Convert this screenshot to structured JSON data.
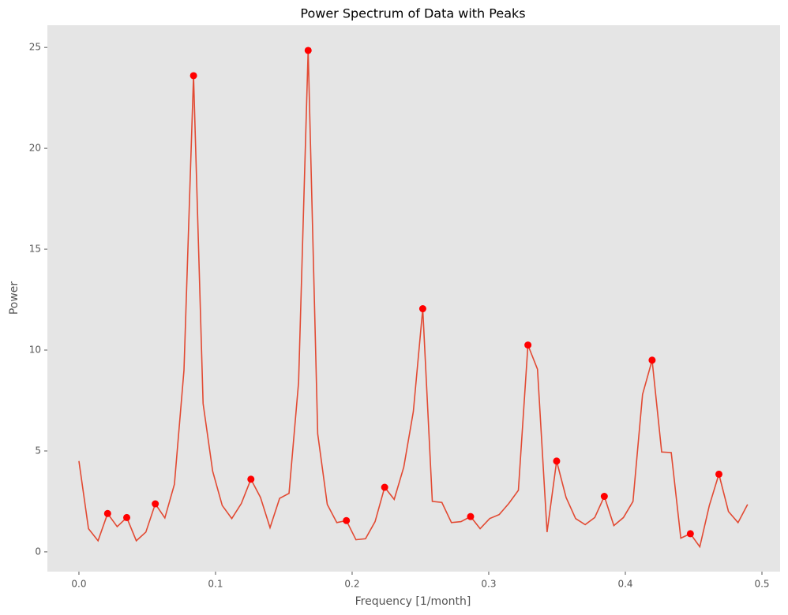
{
  "chart_data": {
    "type": "line",
    "title": "Power Spectrum of Data with Peaks",
    "x_label": "Frequency [1/month]",
    "y_label": "Power",
    "x": [
      0,
      0.007,
      0.014,
      0.021,
      0.028,
      0.035,
      0.042,
      0.049,
      0.0559,
      0.0629,
      0.0699,
      0.0769,
      0.0839,
      0.0909,
      0.0979,
      0.1049,
      0.1119,
      0.1189,
      0.1259,
      0.1329,
      0.1399,
      0.1469,
      0.1538,
      0.1608,
      0.1678,
      0.1748,
      0.1818,
      0.1888,
      0.1958,
      0.2028,
      0.2098,
      0.2168,
      0.2238,
      0.2308,
      0.2378,
      0.2448,
      0.2517,
      0.2587,
      0.2657,
      0.2727,
      0.2797,
      0.2867,
      0.2937,
      0.3007,
      0.3077,
      0.3147,
      0.3217,
      0.3287,
      0.3357,
      0.3427,
      0.3497,
      0.3566,
      0.3636,
      0.3706,
      0.3776,
      0.3846,
      0.3916,
      0.3986,
      0.4056,
      0.4126,
      0.4196,
      0.4266,
      0.4336,
      0.4406,
      0.4476,
      0.4545,
      0.4615,
      0.4685,
      0.4755,
      0.4825,
      0.4895
    ],
    "series": [
      {
        "color": "#e24a33",
        "values": [
          4.5,
          1.15,
          0.55,
          1.9,
          1.25,
          1.7,
          0.55,
          0.98,
          2.38,
          1.68,
          3.35,
          9.0,
          23.6,
          7.35,
          4.0,
          2.3,
          1.65,
          2.4,
          3.6,
          2.7,
          1.2,
          2.65,
          2.9,
          8.4,
          24.85,
          5.85,
          2.35,
          1.45,
          1.55,
          0.6,
          0.65,
          1.5,
          3.2,
          2.6,
          4.2,
          6.95,
          12.05,
          2.5,
          2.45,
          1.45,
          1.5,
          1.75,
          1.15,
          1.65,
          1.85,
          2.4,
          3.05,
          10.25,
          9.05,
          0.98,
          4.5,
          2.7,
          1.65,
          1.35,
          1.7,
          2.75,
          1.3,
          1.7,
          2.5,
          7.8,
          9.5,
          4.95,
          4.92,
          0.68,
          0.9,
          0.25,
          2.3,
          3.85,
          2.0,
          1.45,
          2.35
        ]
      }
    ],
    "peaks": {
      "color": "#ff0000",
      "x": [
        0.021,
        0.035,
        0.0559,
        0.0839,
        0.1259,
        0.1678,
        0.1958,
        0.2238,
        0.2517,
        0.2867,
        0.3287,
        0.3497,
        0.3846,
        0.4196,
        0.4476,
        0.4685
      ],
      "values": [
        1.9,
        1.7,
        2.38,
        23.6,
        3.6,
        24.85,
        1.55,
        3.2,
        12.05,
        1.75,
        10.25,
        4.5,
        2.75,
        9.5,
        0.9,
        3.85
      ]
    },
    "xlim": [
      -0.0231,
      0.5133
    ],
    "ylim": [
      -0.98,
      26.1
    ],
    "xticks": [
      {
        "value": 0,
        "label": "0.0"
      },
      0.1,
      0.2,
      0.3,
      0.4,
      0.5
    ],
    "yticks": [
      0,
      5,
      10,
      15,
      20,
      25
    ],
    "grid": false,
    "background": "#e5e5e5"
  }
}
